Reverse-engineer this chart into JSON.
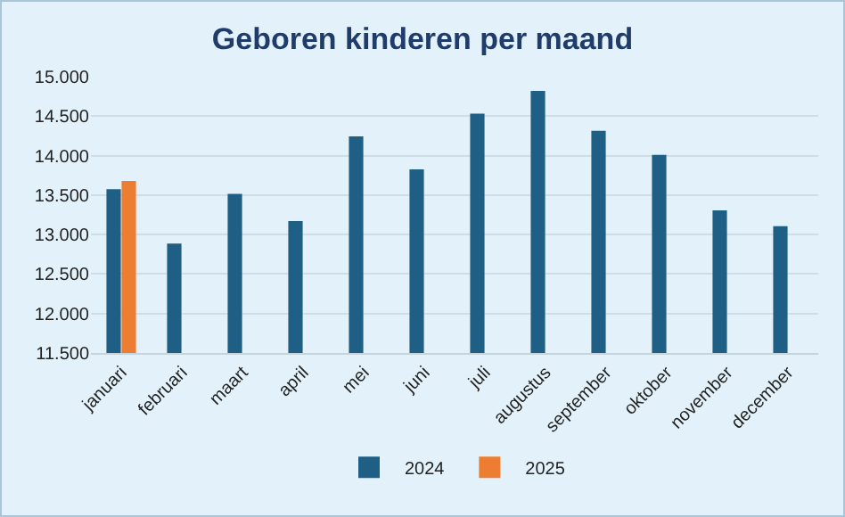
{
  "chart_data": {
    "type": "bar",
    "title": "Geboren kinderen per maand",
    "categories": [
      "januari",
      "februari",
      "maart",
      "april",
      "mei",
      "juni",
      "juli",
      "augustus",
      "september",
      "oktober",
      "november",
      "december"
    ],
    "series": [
      {
        "name": "2024",
        "color": "#1f5f86",
        "values": [
          13575,
          12885,
          13515,
          13170,
          14245,
          13825,
          14530,
          14820,
          14315,
          14010,
          13305,
          13105
        ]
      },
      {
        "name": "2025",
        "color": "#ed7d31",
        "values": [
          13680,
          null,
          null,
          null,
          null,
          null,
          null,
          null,
          null,
          null,
          null,
          null
        ]
      }
    ],
    "ylim": [
      11500,
      15000
    ],
    "yticks": [
      {
        "value": 11500,
        "label": "11.500"
      },
      {
        "value": 12000,
        "label": "12.000"
      },
      {
        "value": 12500,
        "label": "12.500"
      },
      {
        "value": 13000,
        "label": "13.000"
      },
      {
        "value": 13500,
        "label": "13.500"
      },
      {
        "value": 14000,
        "label": "14.000"
      },
      {
        "value": 14500,
        "label": "14.500"
      },
      {
        "value": 15000,
        "label": "15.000"
      }
    ],
    "grid": "y",
    "legend": "bottom"
  }
}
